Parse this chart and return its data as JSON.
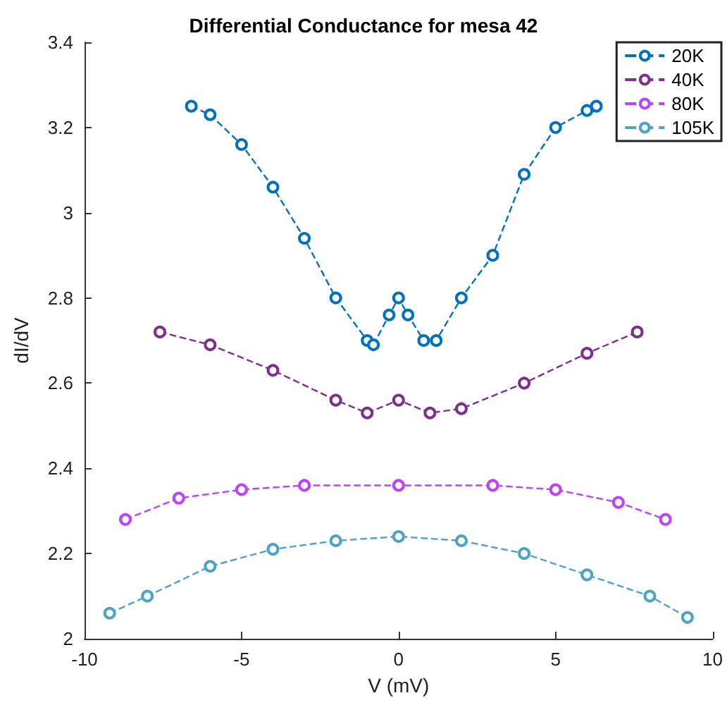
{
  "chart_data": {
    "type": "line",
    "title": "Differential Conductance for mesa 42",
    "xlabel": "V (mV)",
    "ylabel": "dI/dV",
    "xlim": [
      -10,
      10
    ],
    "xticks": [
      -10,
      -5,
      0,
      5,
      10
    ],
    "ylim": [
      2,
      3.4
    ],
    "yticks": [
      2,
      2.2,
      2.4,
      2.6,
      2.8,
      3,
      3.2,
      3.4
    ],
    "grid": false,
    "legend": "top right",
    "marker": "circle",
    "line_style": "dashed",
    "series": [
      {
        "name": "20K",
        "color": "#0072bd",
        "x": [
          -6.6,
          -6,
          -5,
          -4,
          -3,
          -2,
          -1,
          -0.8,
          -0.3,
          0,
          0.3,
          0.8,
          1.2,
          2,
          3,
          4,
          5,
          6,
          6.3
        ],
        "values": [
          3.25,
          3.23,
          3.16,
          3.06,
          2.94,
          2.8,
          2.7,
          2.69,
          2.76,
          2.8,
          2.76,
          2.7,
          2.7,
          2.8,
          2.9,
          3.09,
          3.2,
          3.24,
          3.25
        ]
      },
      {
        "name": "40K",
        "color": "#7e2f8e",
        "x": [
          -7.6,
          -6,
          -4,
          -2,
          -1,
          0,
          1,
          2,
          4,
          6,
          7.6
        ],
        "values": [
          2.72,
          2.69,
          2.63,
          2.56,
          2.53,
          2.56,
          2.53,
          2.54,
          2.6,
          2.67,
          2.72
        ]
      },
      {
        "name": "80K",
        "color": "#bf40ff",
        "x": [
          -8.7,
          -7,
          -5,
          -3,
          0,
          3,
          5,
          7,
          8.5
        ],
        "values": [
          2.28,
          2.33,
          2.35,
          2.36,
          2.36,
          2.36,
          2.35,
          2.32,
          2.28
        ]
      },
      {
        "name": "105K",
        "color": "#4da3c7",
        "x": [
          -9.2,
          -8,
          -6,
          -4,
          -2,
          0,
          2,
          4,
          6,
          8,
          9.2
        ],
        "values": [
          2.06,
          2.1,
          2.17,
          2.21,
          2.23,
          2.24,
          2.23,
          2.2,
          2.15,
          2.1,
          2.05
        ]
      }
    ]
  }
}
